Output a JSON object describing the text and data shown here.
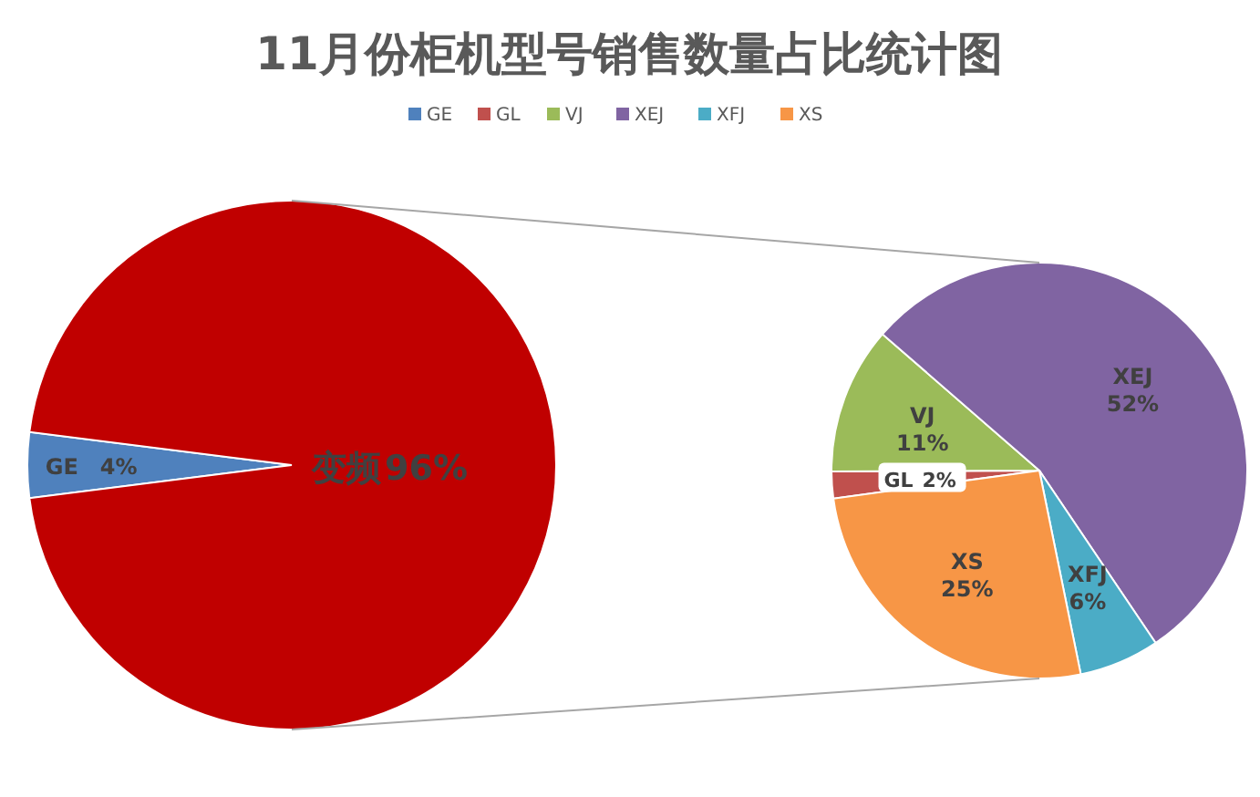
{
  "chart_data": [
    {
      "type": "pie",
      "title": "11月份柜机型号销售数量占比统计图",
      "categories": [
        "GE",
        "变频"
      ],
      "values": [
        4,
        96
      ],
      "value_labels": [
        "4%",
        "96%"
      ],
      "colors": [
        "#4f81bd",
        "#c00000"
      ],
      "legend": "top"
    },
    {
      "type": "pie",
      "categories": [
        "GL",
        "VJ",
        "XEJ",
        "XFJ",
        "XS"
      ],
      "values": [
        2,
        11,
        52,
        6,
        25
      ],
      "value_labels": [
        "2%",
        "11%",
        "52%",
        "6%",
        "25%"
      ],
      "colors": [
        "#c0504d",
        "#9bbb59",
        "#8064a2",
        "#4bacc6",
        "#f79646"
      ],
      "legend": "top"
    }
  ]
}
